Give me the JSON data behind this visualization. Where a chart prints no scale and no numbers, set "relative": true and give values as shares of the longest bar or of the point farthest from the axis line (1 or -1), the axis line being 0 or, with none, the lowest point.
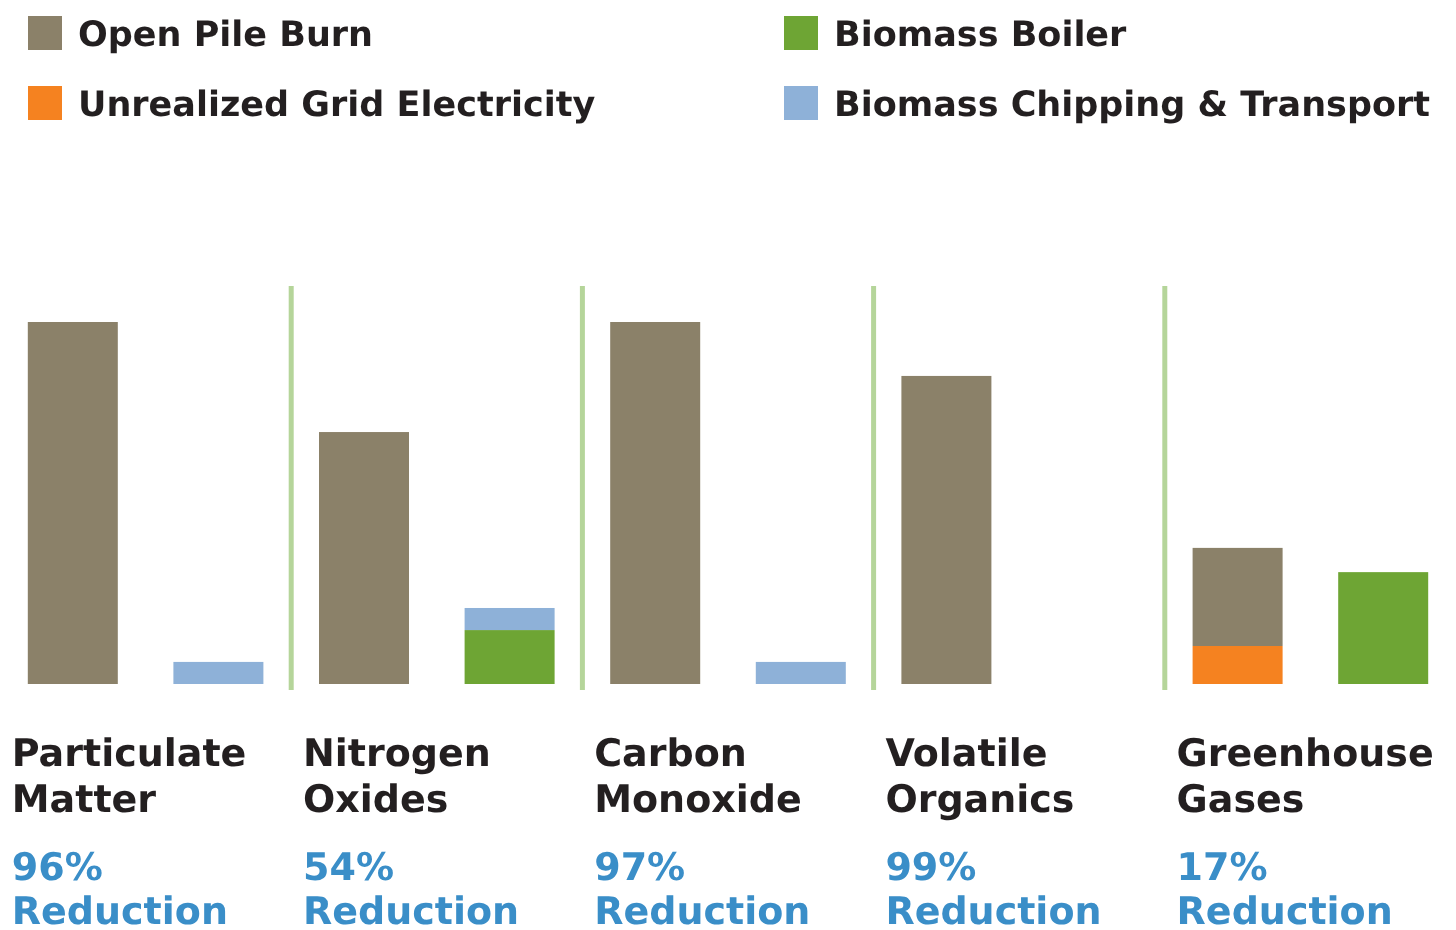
{
  "chart_data": {
    "type": "bar",
    "relative": true,
    "stacked": true,
    "legend": "top left",
    "grid": "x",
    "categories": [
      "Particulate Matter",
      null,
      "Nitrogen Oxides",
      null,
      "Carbon Monoxide",
      null,
      "Volatile Organics",
      null,
      "Greenhouse Gases",
      null
    ],
    "series": [
      {
        "name": "Unrealized Grid Electricity",
        "color": "#f58220",
        "values": [
          null,
          null,
          null,
          null,
          null,
          null,
          null,
          null,
          0.105,
          null
        ]
      },
      {
        "name": "Open Pile Burn",
        "color": "#8b8169",
        "values": [
          1,
          null,
          0.696,
          null,
          1,
          null,
          0.851,
          null,
          0.271,
          null
        ]
      },
      {
        "name": "Biomass Boiler",
        "color": "#6ea534",
        "values": [
          null,
          null,
          null,
          0.149,
          null,
          null,
          null,
          null,
          null,
          0.309
        ]
      },
      {
        "name": "Biomass Chipping & Transport",
        "color": "#8eb1d8",
        "values": [
          null,
          0.061,
          null,
          0.061,
          null,
          0.061,
          null,
          null,
          null,
          null
        ]
      }
    ],
    "annotations": [
      "96% Reduction",
      "54% Reduction",
      "97% Reduction",
      "99% Reduction",
      "17% Reduction"
    ]
  }
}
